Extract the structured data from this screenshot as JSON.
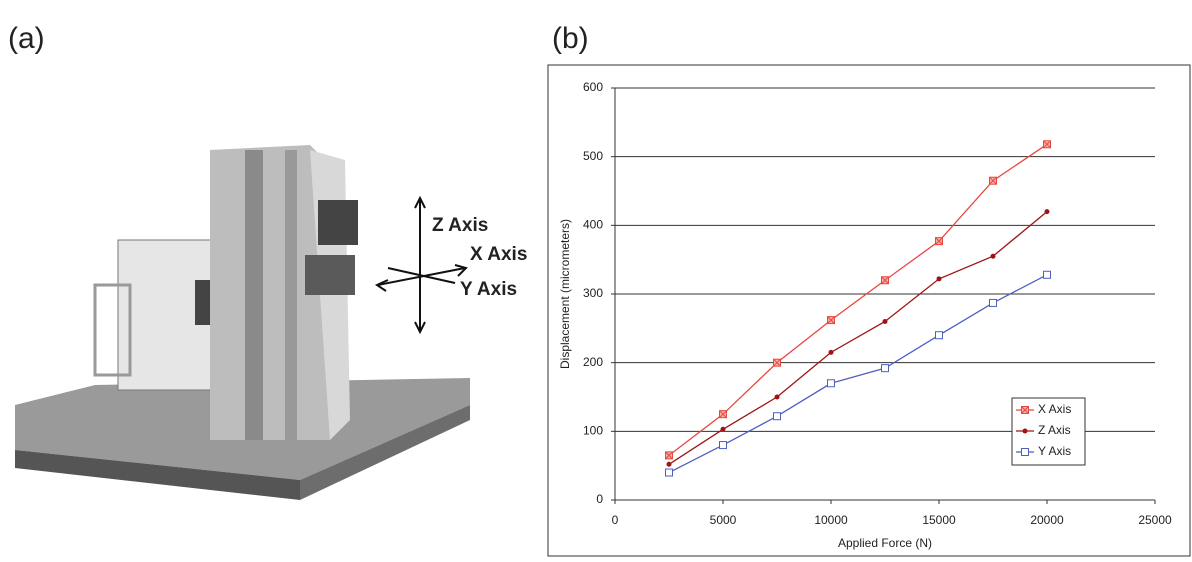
{
  "figure": {
    "panel_a_label": "(a)",
    "panel_b_label": "(b)",
    "photo_axis_labels": [
      "Z Axis",
      "X Axis",
      "Y Axis"
    ]
  },
  "chart_data": {
    "type": "line",
    "xlabel": "Applied Force (N)",
    "ylabel": "Displacement (micrometers)",
    "x": [
      2500,
      5000,
      7500,
      10000,
      12500,
      15000,
      17500,
      20000
    ],
    "series": [
      {
        "name": "X Axis",
        "color": "#e8463e",
        "marker": "square-x",
        "values": [
          65,
          125,
          200,
          262,
          320,
          377,
          465,
          518
        ]
      },
      {
        "name": "Z Axis",
        "color": "#9e1414",
        "marker": "dot",
        "values": [
          52,
          103,
          150,
          215,
          260,
          322,
          355,
          420
        ]
      },
      {
        "name": "Y Axis",
        "color": "#4f5fc2",
        "marker": "open-square",
        "values": [
          40,
          80,
          122,
          170,
          192,
          240,
          287,
          328
        ]
      }
    ],
    "xlim": [
      0,
      25000
    ],
    "xticks": [
      0,
      5000,
      10000,
      15000,
      20000,
      25000
    ],
    "ylim": [
      0,
      600
    ],
    "yticks": [
      0,
      100,
      200,
      300,
      400,
      500,
      600
    ],
    "grid": true,
    "legend": "lower-right"
  }
}
